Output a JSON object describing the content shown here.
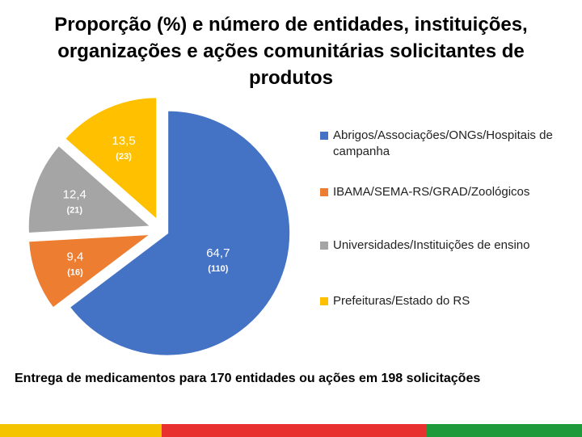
{
  "title": "Proporção (%) e número de entidades, instituições, organizações e ações comunitárias solicitantes de produtos",
  "footnote": "Entrega de medicamentos para 170 entidades ou ações em 198 solicitações",
  "chart_data": {
    "type": "pie",
    "title": "Proporção (%) e número de entidades, instituições, organizações e ações comunitárias solicitantes de produtos",
    "legend_position": "right",
    "exploded": true,
    "slices": [
      {
        "label": "Abrigos/Associações/ONGs/Hospitais de campanha",
        "value": 64.7,
        "value_label": "64,7",
        "count": 110,
        "count_label": "(110)",
        "color": "#4472C4"
      },
      {
        "label": "IBAMA/SEMA-RS/GRAD/Zoológicos",
        "value": 9.4,
        "value_label": "9,4",
        "count": 16,
        "count_label": "(16)",
        "color": "#ED7D31"
      },
      {
        "label": "Universidades/Instituições de ensino",
        "value": 12.4,
        "value_label": "12,4",
        "count": 21,
        "count_label": "(21)",
        "color": "#A5A5A5"
      },
      {
        "label": "Prefeituras/Estado do RS",
        "value": 13.5,
        "value_label": "13,5",
        "count": 23,
        "count_label": "(23)",
        "color": "#FFC000"
      }
    ]
  },
  "bottom_stripe_colors": [
    "#F5C400",
    "#E8302F",
    "#1F9A3A"
  ]
}
